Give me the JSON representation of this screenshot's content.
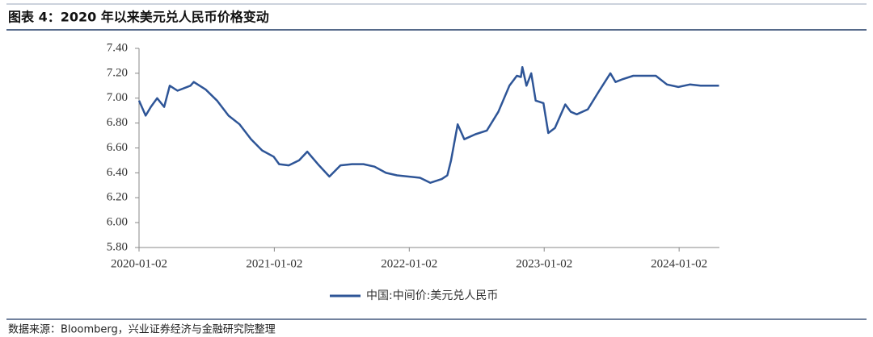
{
  "chart_data": {
    "type": "line",
    "title": "图表 4：2020 年以来美元兑人民币价格变动",
    "source": "数据来源：Bloomberg，兴业证券经济与金融研究院整理",
    "x": [
      "2020-01-02",
      "2020-01-20",
      "2020-02-03",
      "2020-02-20",
      "2020-03-10",
      "2020-03-25",
      "2020-04-15",
      "2020-05-20",
      "2020-05-29",
      "2020-06-30",
      "2020-07-31",
      "2020-08-31",
      "2020-09-30",
      "2020-10-31",
      "2020-11-30",
      "2020-12-31",
      "2021-01-15",
      "2021-02-10",
      "2021-03-10",
      "2021-04-01",
      "2021-04-30",
      "2021-05-31",
      "2021-06-30",
      "2021-07-31",
      "2021-08-31",
      "2021-09-30",
      "2021-10-31",
      "2021-11-30",
      "2021-12-31",
      "2022-01-31",
      "2022-02-28",
      "2022-03-31",
      "2022-04-15",
      "2022-04-25",
      "2022-05-13",
      "2022-05-31",
      "2022-06-30",
      "2022-07-31",
      "2022-08-31",
      "2022-09-30",
      "2022-10-20",
      "2022-10-31",
      "2022-11-04",
      "2022-11-15",
      "2022-11-28",
      "2022-12-10",
      "2022-12-31",
      "2023-01-13",
      "2023-01-31",
      "2023-02-28",
      "2023-03-15",
      "2023-03-31",
      "2023-04-30",
      "2023-05-31",
      "2023-06-30",
      "2023-07-14",
      "2023-07-31",
      "2023-08-31",
      "2023-09-30",
      "2023-10-31",
      "2023-11-30",
      "2023-12-31",
      "2024-01-31",
      "2024-02-29",
      "2024-03-31",
      "2024-04-19"
    ],
    "series": [
      {
        "name": "中国:中间价:美元兑人民币",
        "color": "#2e5597",
        "values": [
          6.98,
          6.86,
          6.93,
          7.0,
          6.93,
          7.1,
          7.06,
          7.1,
          7.13,
          7.07,
          6.98,
          6.86,
          6.79,
          6.67,
          6.58,
          6.53,
          6.47,
          6.46,
          6.5,
          6.57,
          6.47,
          6.37,
          6.46,
          6.47,
          6.47,
          6.45,
          6.4,
          6.38,
          6.37,
          6.36,
          6.32,
          6.35,
          6.38,
          6.5,
          6.79,
          6.67,
          6.71,
          6.74,
          6.89,
          7.1,
          7.18,
          7.17,
          7.25,
          7.1,
          7.2,
          6.98,
          6.96,
          6.72,
          6.76,
          6.95,
          6.89,
          6.87,
          6.91,
          7.06,
          7.2,
          7.13,
          7.15,
          7.18,
          7.18,
          7.18,
          7.11,
          7.09,
          7.11,
          7.1,
          7.1,
          7.1
        ]
      }
    ],
    "xlim": [
      "2020-01-02",
      "2024-04-20"
    ],
    "xticks": [
      "2020-01-02",
      "2021-01-02",
      "2022-01-02",
      "2023-01-02",
      "2024-01-02"
    ],
    "ylim": [
      5.8,
      7.4
    ],
    "yticks": [
      {
        "value": 5.8,
        "label": "5.80"
      },
      {
        "value": 6.0,
        "label": "6.00"
      },
      {
        "value": 6.2,
        "label": "6.20"
      },
      {
        "value": 6.4,
        "label": "6.40"
      },
      {
        "value": 6.6,
        "label": "6.60"
      },
      {
        "value": 6.8,
        "label": "6.80"
      },
      {
        "value": 7.0,
        "label": "7.00"
      },
      {
        "value": 7.2,
        "label": "7.20"
      },
      {
        "value": 7.4,
        "label": "7.40"
      }
    ],
    "grid": false
  }
}
